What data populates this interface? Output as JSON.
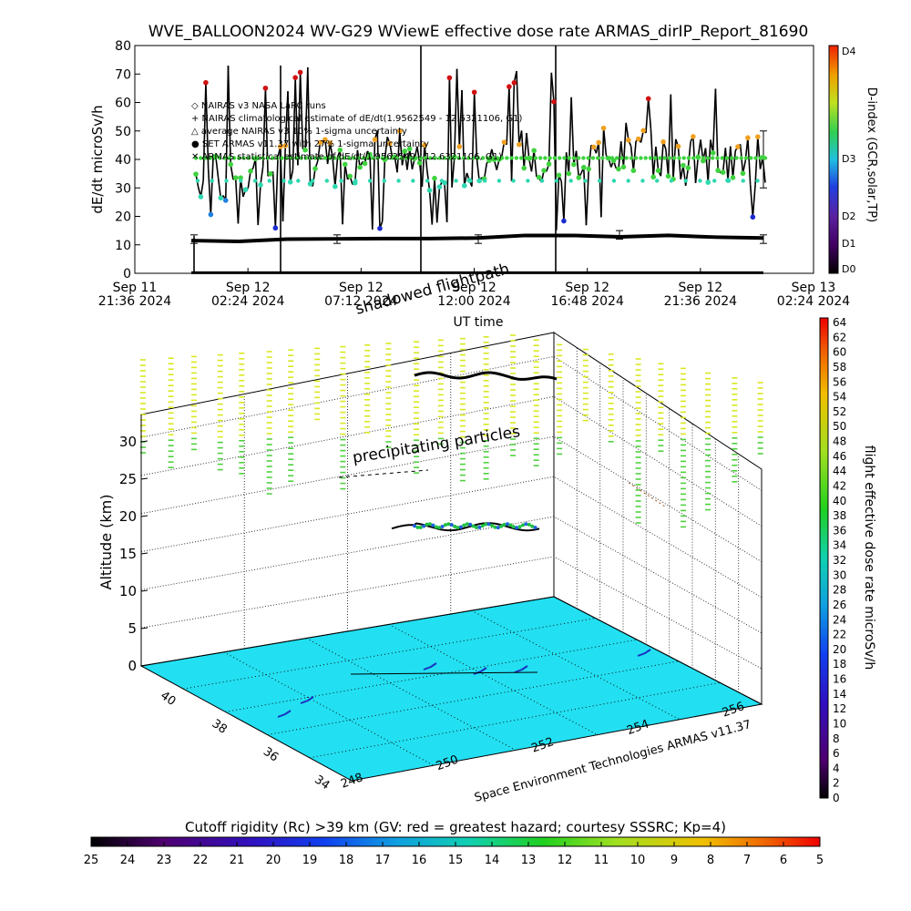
{
  "title": "WVE_BALLOON2024 WV-G29 WViewE effective dose rate ARMAS_dirIP_Report_81690",
  "top_chart": {
    "ylabel": "dE/dt microSv/h",
    "xlabel": "UT time",
    "yticks": [
      "0",
      "10",
      "20",
      "30",
      "40",
      "50",
      "60",
      "70",
      "80"
    ],
    "xticks": [
      {
        "l1": "Sep 11",
        "l2": "21:36 2024"
      },
      {
        "l1": "Sep 12",
        "l2": "02:24 2024"
      },
      {
        "l1": "Sep 12",
        "l2": "07:12 2024"
      },
      {
        "l1": "Sep 12",
        "l2": "12:00 2024"
      },
      {
        "l1": "Sep 12",
        "l2": "16:48 2024"
      },
      {
        "l1": "Sep 12",
        "l2": "21:36 2024"
      },
      {
        "l1": "Sep 13",
        "l2": "02:24 2024"
      }
    ],
    "legend": [
      "◇ NAIRAS v3 NASA LaRC runs",
      "+ NAIRAS climatological estimate of dE/dt(1.9562549 - 12.6321106, G1)",
      "△ average NAIRAS v3 10% 1-sigma uncertainty",
      "● SET ARMAS v11.37 with 27% 1-sigma uncertainty",
      "✕ ARMAS statistical estimate of dE/dt(1.9562549 - 12.6321106, G1)"
    ],
    "colorbar": {
      "label": "D-index (GCR,solar,TP)",
      "ticks": [
        "D4",
        "D3",
        "D2",
        "D1",
        "D0"
      ]
    }
  },
  "chart_data": [
    {
      "type": "line",
      "title": "WVE_BALLOON2024 WV-G29 WViewE effective dose rate ARMAS_dirIP_Report_81690",
      "xlabel": "UT time",
      "ylabel": "dE/dt microSv/h",
      "ylim": [
        0,
        80
      ],
      "series": [
        {
          "name": "NAIRAS climatological estimate",
          "x": [
            "2024-09-12 00:00",
            "2024-09-12 02:00",
            "2024-09-12 04:00",
            "2024-09-12 06:00",
            "2024-09-12 08:00",
            "2024-09-12 10:00",
            "2024-09-12 12:00",
            "2024-09-12 14:00",
            "2024-09-12 16:00",
            "2024-09-12 18:00",
            "2024-09-12 20:00",
            "2024-09-12 22:00",
            "2024-09-13 00:00"
          ],
          "values": [
            11.5,
            11.2,
            12.0,
            12.1,
            12.2,
            12.2,
            12.4,
            13.3,
            13.3,
            12.8,
            13.3,
            12.7,
            12.4
          ]
        },
        {
          "name": "SET ARMAS v11.37",
          "x": [
            "2024-09-12 00:00",
            "2024-09-12 02:00",
            "2024-09-12 04:00",
            "2024-09-12 06:00",
            "2024-09-12 08:00",
            "2024-09-12 10:00",
            "2024-09-12 12:00",
            "2024-09-12 14:00",
            "2024-09-12 16:00",
            "2024-09-12 18:00",
            "2024-09-12 20:00",
            "2024-09-12 22:00",
            "2024-09-13 00:00"
          ],
          "values": [
            35,
            30,
            40,
            38,
            44,
            36,
            40,
            42,
            38,
            45,
            40,
            39,
            40
          ]
        }
      ]
    },
    {
      "type": "scatter",
      "title": "",
      "xlabel": "",
      "ylabel": "Altitude (km)",
      "zticks": [
        "0",
        "5",
        "10",
        "15",
        "20",
        "25",
        "30"
      ],
      "lat_ticks": [
        "40",
        "38",
        "36",
        "34"
      ],
      "lon_ticks": [
        "248",
        "250",
        "252",
        "254",
        "256"
      ],
      "annotations": [
        "shadowed flightpath",
        "precipitating particles"
      ],
      "credit": "Space Environment Technologies ARMAS v11.37",
      "flight_altitude_km": 19
    }
  ],
  "right_colorbar": {
    "label": "flight effective dose rate microSv/h",
    "ticks": [
      "64",
      "62",
      "60",
      "58",
      "56",
      "54",
      "52",
      "50",
      "48",
      "46",
      "44",
      "42",
      "40",
      "38",
      "36",
      "34",
      "32",
      "30",
      "28",
      "26",
      "24",
      "22",
      "20",
      "18",
      "16",
      "14",
      "12",
      "10",
      "8",
      "6",
      "4",
      "2",
      "0"
    ]
  },
  "bottom_colorbar": {
    "title": "Cutoff rigidity (Rc) >39 km (GV: red = greatest hazard; courtesy SSSRC; Kp=4)",
    "ticks": [
      "25",
      "24",
      "23",
      "22",
      "21",
      "20",
      "19",
      "18",
      "17",
      "16",
      "15",
      "14",
      "13",
      "12",
      "11",
      "10",
      "9",
      "8",
      "7",
      "6",
      "5"
    ]
  },
  "colors": {
    "ground": "#22e0f2",
    "axis": "#000000",
    "dose_green": "#3fd23f",
    "dose_cyan": "#2ed8b0",
    "dose_blue": "#1e80e0",
    "dose_navy": "#1a2ad0",
    "dose_orange": "#f0a020",
    "dose_red": "#d01010"
  }
}
